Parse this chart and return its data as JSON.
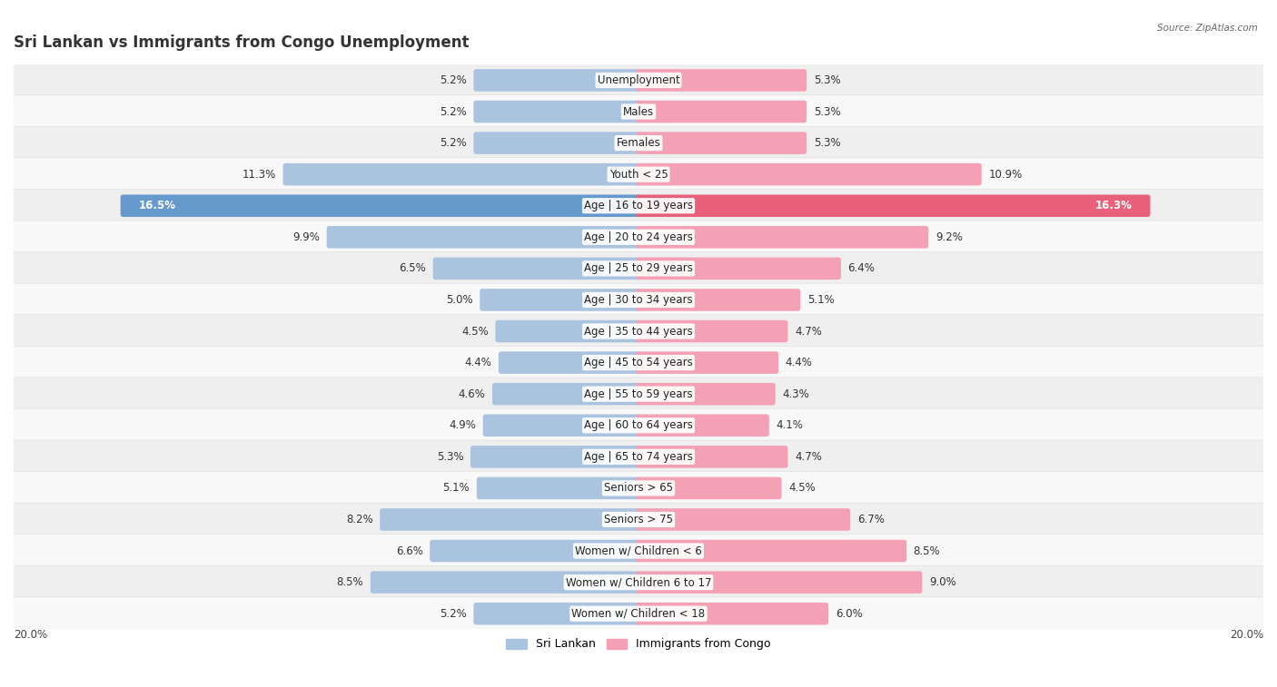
{
  "title": "Sri Lankan vs Immigrants from Congo Unemployment",
  "source": "Source: ZipAtlas.com",
  "categories": [
    "Unemployment",
    "Males",
    "Females",
    "Youth < 25",
    "Age | 16 to 19 years",
    "Age | 20 to 24 years",
    "Age | 25 to 29 years",
    "Age | 30 to 34 years",
    "Age | 35 to 44 years",
    "Age | 45 to 54 years",
    "Age | 55 to 59 years",
    "Age | 60 to 64 years",
    "Age | 65 to 74 years",
    "Seniors > 65",
    "Seniors > 75",
    "Women w/ Children < 6",
    "Women w/ Children 6 to 17",
    "Women w/ Children < 18"
  ],
  "sri_lankan": [
    5.2,
    5.2,
    5.2,
    11.3,
    16.5,
    9.9,
    6.5,
    5.0,
    4.5,
    4.4,
    4.6,
    4.9,
    5.3,
    5.1,
    8.2,
    6.6,
    8.5,
    5.2
  ],
  "congo": [
    5.3,
    5.3,
    5.3,
    10.9,
    16.3,
    9.2,
    6.4,
    5.1,
    4.7,
    4.4,
    4.3,
    4.1,
    4.7,
    4.5,
    6.7,
    8.5,
    9.0,
    6.0
  ],
  "blue_color": "#aac4e0",
  "pink_color": "#f4a0b5",
  "blue_highlight": "#6699cc",
  "pink_highlight": "#e8607a",
  "axis_limit": 20.0,
  "category_fontsize": 8.5,
  "title_fontsize": 12,
  "value_fontsize": 8.5,
  "row_bg_even": "#efefef",
  "row_bg_odd": "#f8f8f8",
  "fig_bg": "#ffffff"
}
